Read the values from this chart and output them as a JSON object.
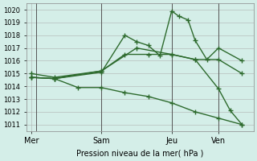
{
  "title": "",
  "xlabel": "Pression niveau de la mer( hPa )",
  "ylabel": "",
  "background_color": "#d4eee8",
  "grid_color": "#aaaaaa",
  "line_color": "#2d6a2d",
  "ylim": [
    1010.5,
    1020.5
  ],
  "yticks": [
    1011,
    1012,
    1013,
    1014,
    1015,
    1016,
    1017,
    1018,
    1019,
    1020
  ],
  "xtick_labels": [
    "Mer",
    "Sam",
    "Jeu",
    "Ven"
  ],
  "xtick_positions": [
    0,
    3,
    6,
    8
  ],
  "lines": [
    {
      "x": [
        0,
        1,
        3,
        4,
        4.5,
        5,
        5.5,
        6,
        6.3,
        6.7,
        7,
        7.5,
        8,
        9
      ],
      "y": [
        1014.7,
        1014.6,
        1015.1,
        1018.0,
        1017.5,
        1017.2,
        1016.4,
        1019.9,
        1019.5,
        1019.2,
        1017.6,
        1016.1,
        1017.0,
        1016.0
      ]
    },
    {
      "x": [
        0,
        1,
        3,
        4,
        5,
        6,
        7,
        8,
        9
      ],
      "y": [
        1014.7,
        1014.6,
        1015.2,
        1016.5,
        1016.5,
        1016.5,
        1016.1,
        1016.1,
        1015.0
      ]
    },
    {
      "x": [
        0,
        1,
        2,
        3,
        4,
        5,
        6,
        7,
        8,
        9
      ],
      "y": [
        1014.7,
        1014.6,
        1013.9,
        1013.9,
        1013.5,
        1013.2,
        1012.7,
        1012.0,
        1011.5,
        1011.0
      ]
    },
    {
      "x": [
        0,
        1,
        3,
        4.5,
        6,
        7,
        8,
        8.5,
        9
      ],
      "y": [
        1015.0,
        1014.7,
        1015.2,
        1017.0,
        1016.5,
        1016.1,
        1013.8,
        1012.1,
        1011.0
      ]
    }
  ],
  "vlines": [
    0.2,
    3.0,
    6.0,
    8.0
  ],
  "xlim": [
    -0.2,
    9.5
  ]
}
